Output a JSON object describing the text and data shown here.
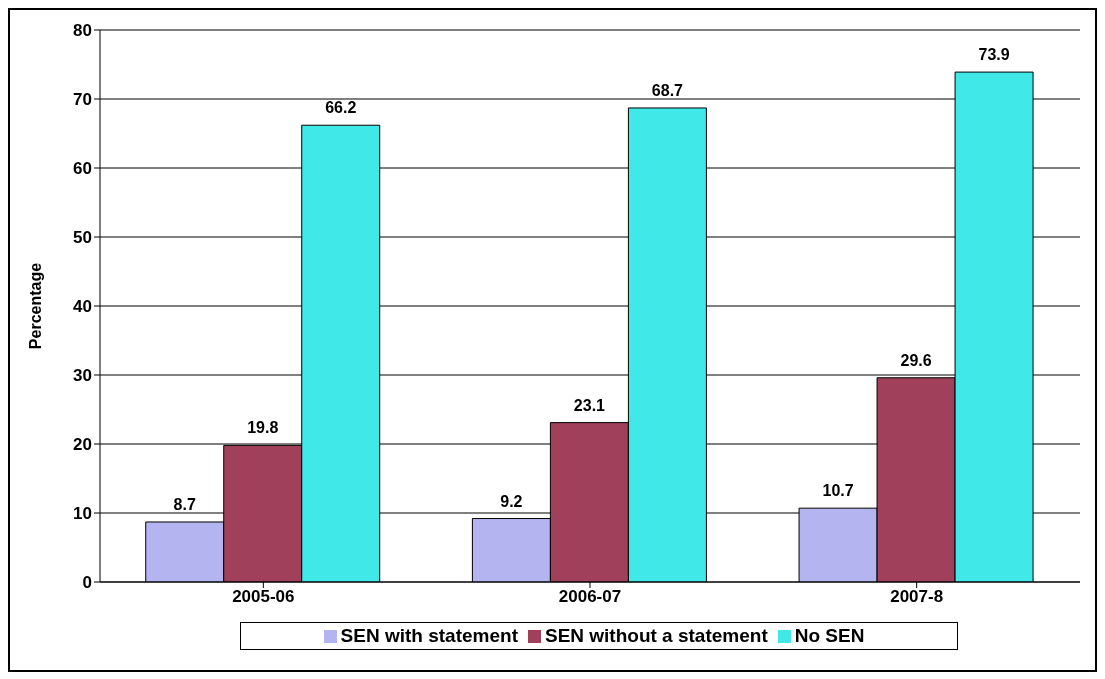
{
  "chart_data": {
    "type": "bar",
    "ylabel": "Percentage",
    "categories": [
      "2005-06",
      "2006-07",
      "2007-8"
    ],
    "series": [
      {
        "name": "SEN with statement",
        "color": "#b4b4f0",
        "values": [
          8.7,
          9.2,
          10.7
        ]
      },
      {
        "name": "SEN without a statement",
        "color": "#a0405a",
        "values": [
          19.8,
          23.1,
          29.6
        ]
      },
      {
        "name": "No SEN",
        "color": "#40e8e8",
        "values": [
          66.2,
          68.7,
          73.9
        ]
      }
    ],
    "ylim": [
      0,
      80
    ],
    "yticks": [
      0,
      10,
      20,
      30,
      40,
      50,
      60,
      70,
      80
    ],
    "grid": "y",
    "legend": "bottom",
    "data_labels": true
  }
}
